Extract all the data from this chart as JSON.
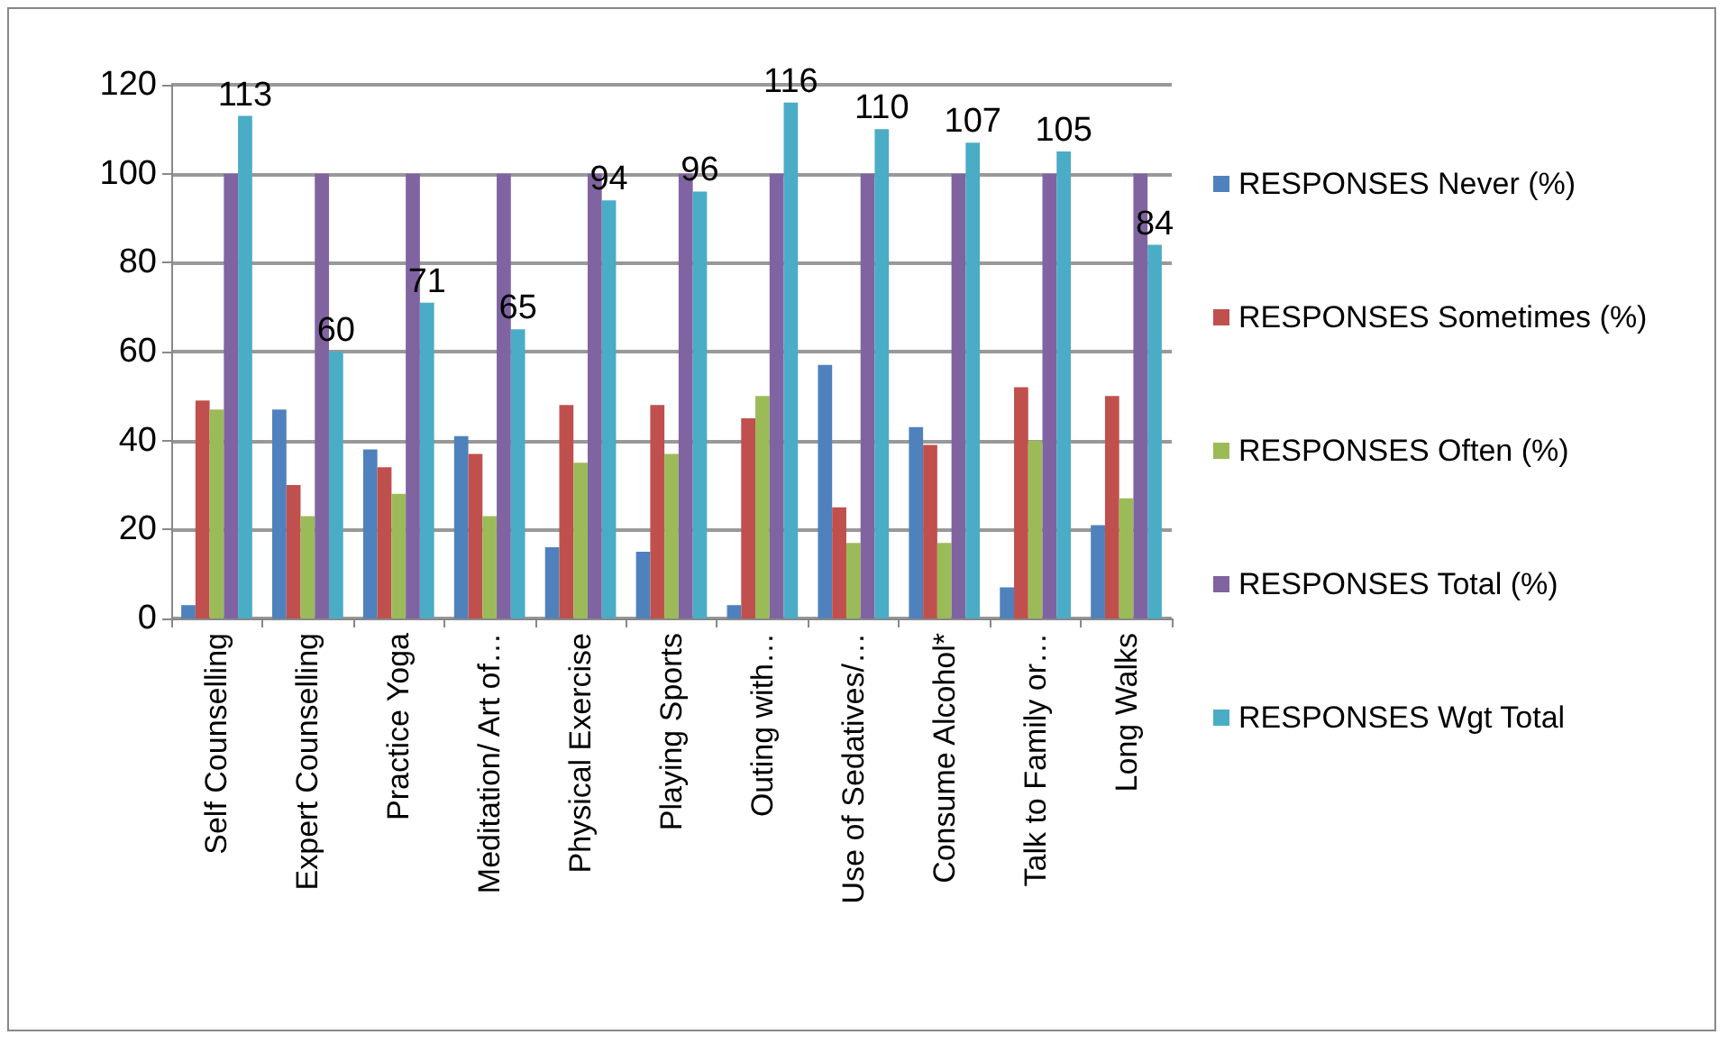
{
  "chart_data": {
    "type": "bar",
    "categories": [
      "Self Counselling",
      "Expert Counselling",
      "Practice Yoga",
      "Meditation/ Art of…",
      "Physical Exercise",
      "Playing Sports",
      "Outing with…",
      "Use of Sedatives/…",
      "Consume Alcohol*",
      "Talk to Family or…",
      "Long Walks"
    ],
    "series": [
      {
        "name": "RESPONSES Never (%)",
        "color": "#4f81bd",
        "values": [
          3,
          47,
          38,
          41,
          16,
          15,
          3,
          57,
          43,
          7,
          21
        ]
      },
      {
        "name": "RESPONSES Sometimes (%)",
        "color": "#c0504d",
        "values": [
          49,
          30,
          34,
          37,
          48,
          48,
          45,
          25,
          39,
          52,
          50
        ]
      },
      {
        "name": "RESPONSES Often (%)",
        "color": "#9bbb59",
        "values": [
          47,
          23,
          28,
          23,
          35,
          37,
          50,
          17,
          17,
          40,
          27
        ]
      },
      {
        "name": "RESPONSES Total (%)",
        "color": "#8064a2",
        "values": [
          100,
          100,
          100,
          100,
          100,
          100,
          100,
          100,
          100,
          100,
          100
        ]
      },
      {
        "name": "RESPONSES Wgt Total",
        "color": "#4bacc6",
        "values": [
          113,
          60,
          71,
          65,
          94,
          96,
          116,
          110,
          107,
          105,
          84
        ],
        "value_labels": [
          "113",
          "60",
          "71",
          "65",
          "94",
          "96",
          "116",
          "110",
          "107",
          "105",
          "84"
        ]
      }
    ],
    "ylim": [
      0,
      120
    ],
    "yticks": [
      0,
      20,
      40,
      60,
      80,
      100,
      120
    ],
    "grid": "y",
    "legend": "right"
  }
}
